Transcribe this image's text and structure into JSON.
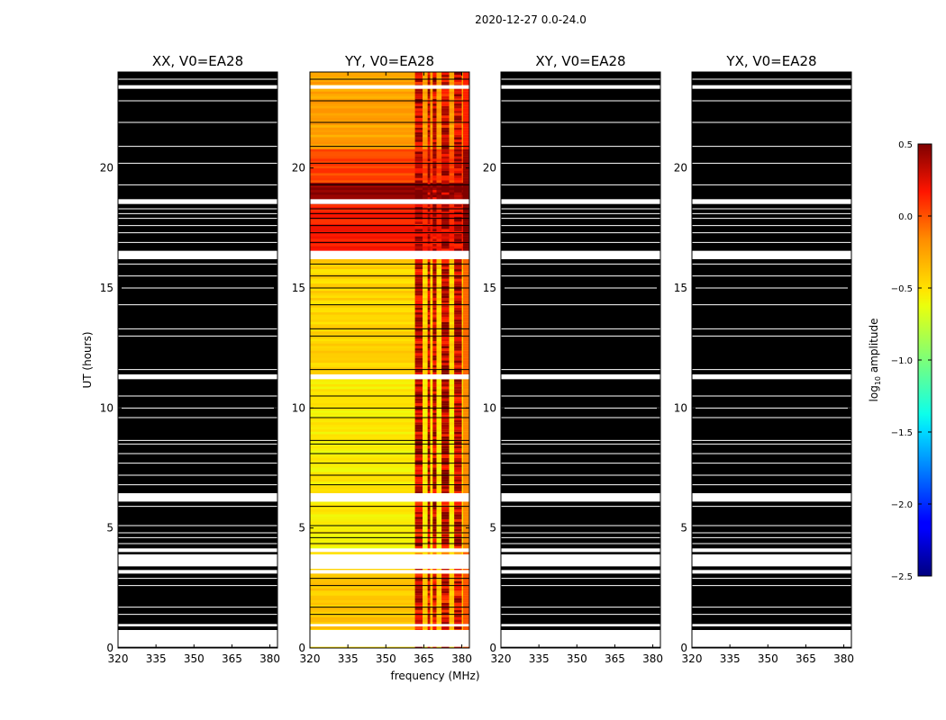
{
  "figure": {
    "suptitle": "2020-12-27 0.0-24.0",
    "xlabel": "frequency (MHz)",
    "ylabel": "UT (hours)",
    "colorbar_label": "log",
    "colorbar_label_sub": "10",
    "colorbar_label_tail": " amplitude"
  },
  "chart_data": {
    "type": "heatmap",
    "title": "2020-12-27 0.0-24.0",
    "xlabel": "frequency (MHz)",
    "ylabel": "UT (hours)",
    "xlim": [
      320,
      383
    ],
    "ylim": [
      0,
      24
    ],
    "xticks": [
      320,
      335,
      350,
      365,
      380
    ],
    "yticks": [
      0,
      5,
      10,
      15,
      20
    ],
    "colorbar": {
      "label": "log10 amplitude",
      "range": [
        -2.5,
        0.5
      ],
      "ticks": [
        "0.5",
        "0.0",
        "−0.5",
        "−1.0",
        "−1.5",
        "−2.0",
        "−2.5"
      ],
      "tick_values": [
        0.5,
        0.0,
        -0.5,
        -1.0,
        -1.5,
        -2.0,
        -2.5
      ],
      "colormap": "jet"
    },
    "panels": [
      {
        "name": "XX, V0=EA28",
        "pol": "XX",
        "content": "black"
      },
      {
        "name": "YY, V0=EA28",
        "pol": "YY",
        "content": "data"
      },
      {
        "name": "XY, V0=EA28",
        "pol": "XY",
        "content": "black"
      },
      {
        "name": "YX, V0=EA28",
        "pol": "YX",
        "content": "black"
      }
    ],
    "flagged_gaps_ut": [
      [
        0.05,
        0.75
      ],
      [
        0.9,
        1.0
      ],
      [
        3.1,
        3.25
      ],
      [
        3.4,
        3.9
      ],
      [
        4.0,
        4.15
      ],
      [
        6.1,
        6.45
      ],
      [
        11.2,
        11.4
      ],
      [
        16.2,
        16.55
      ],
      [
        18.5,
        18.7
      ],
      [
        23.3,
        23.45
      ]
    ],
    "thin_gaps_ut": [
      1.4,
      1.7,
      2.6,
      2.9,
      4.35,
      4.6,
      4.8,
      5.1,
      5.9,
      6.8,
      7.2,
      7.7,
      8.1,
      8.5,
      8.65,
      9.6,
      10.0,
      10.5,
      11.6,
      13.0,
      13.3,
      14.3,
      15.0,
      15.5,
      16.0,
      16.9,
      17.3,
      17.6,
      17.9,
      18.1,
      18.3,
      19.3,
      20.2,
      20.9,
      21.9,
      22.8,
      23.7
    ],
    "yy_intensity_segments": [
      {
        "ut": [
          0.0,
          3.3
        ],
        "base": -0.4,
        "rfi": 0.3
      },
      {
        "ut": [
          3.9,
          4.1
        ],
        "base": -0.45,
        "rfi": -0.3
      },
      {
        "ut": [
          4.15,
          6.1
        ],
        "base": -0.55,
        "rfi": 0.35
      },
      {
        "ut": [
          6.45,
          11.4
        ],
        "base": -0.55,
        "rfi": 0.4
      },
      {
        "ut": [
          11.4,
          16.2
        ],
        "base": -0.45,
        "rfi": 0.4
      },
      {
        "ut": [
          16.55,
          18.5
        ],
        "base": 0.15,
        "rfi": 0.4
      },
      {
        "ut": [
          18.5,
          19.4
        ],
        "base": 0.45,
        "rfi": 0.45
      },
      {
        "ut": [
          19.4,
          20.8
        ],
        "base": 0.05,
        "rfi": 0.4
      },
      {
        "ut": [
          20.8,
          24.0
        ],
        "base": -0.25,
        "rfi": 0.35
      }
    ],
    "yy_rfi_bands_mhz": [
      [
        361.5,
        364.5
      ],
      [
        366.5,
        367.5
      ],
      [
        368.5,
        370.0
      ],
      [
        372.0,
        375.0
      ],
      [
        377.0,
        380.0
      ]
    ],
    "yy_hot_edge_mhz": [
      380.5,
      383
    ]
  }
}
